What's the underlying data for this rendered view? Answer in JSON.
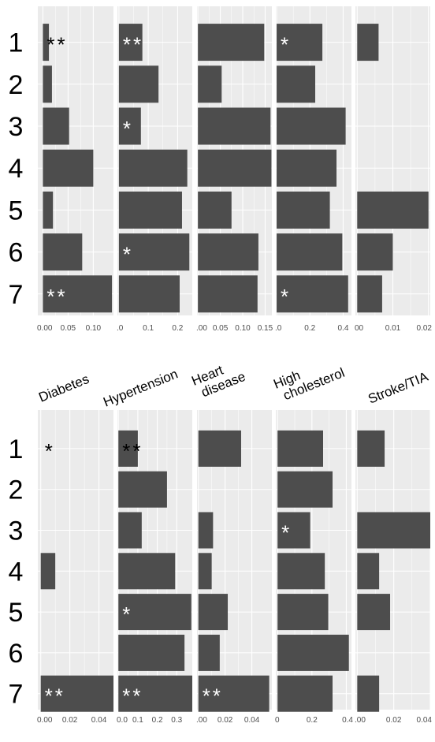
{
  "colors": {
    "panel_bg": "#ebebeb",
    "bar": "#4d4d4d",
    "grid": "#ffffff",
    "text": "#000000",
    "tick_text": "#4d4d4d"
  },
  "facet_labels": [
    "Diabetes",
    "Hypertension",
    "Heart disease",
    "High cholesterol",
    "Stroke/TIA"
  ],
  "chart_data": [
    {
      "type": "bar",
      "orientation": "horizontal",
      "categories": [
        "1",
        "2",
        "3",
        "4",
        "5",
        "6",
        "7"
      ],
      "facets": [
        {
          "name": "Diabetes",
          "xlim": [
            -0.01,
            0.14
          ],
          "ticks": [
            0,
            0.05,
            0.1
          ],
          "tick_labels": [
            "0.00",
            "0.05",
            "0.10"
          ],
          "values": [
            0.012,
            0.018,
            0.052,
            0.1,
            0.02,
            0.078,
            0.137
          ],
          "marks": [
            "**",
            "",
            "",
            "",
            "",
            "",
            "**"
          ]
        },
        {
          "name": "Hypertension",
          "xlim": [
            -0.005,
            0.25
          ],
          "ticks": [
            0,
            0.1,
            0.2
          ],
          "tick_labels": [
            ".0",
            "0.1",
            "0.2"
          ],
          "values": [
            0.08,
            0.135,
            0.075,
            0.233,
            0.215,
            0.24,
            0.207
          ],
          "marks": [
            "**",
            "",
            "*",
            "",
            "",
            "*",
            ""
          ]
        },
        {
          "name": "Heart disease",
          "xlim": [
            -0.002,
            0.165
          ],
          "ticks": [
            0,
            0.05,
            0.1,
            0.15
          ],
          "tick_labels": [
            ".00",
            "0.05",
            "0.10",
            "0.15"
          ],
          "values": [
            0.148,
            0.053,
            0.162,
            0.164,
            0.075,
            0.135,
            0.133
          ],
          "marks": [
            "",
            "",
            "",
            "",
            "",
            "",
            ""
          ]
        },
        {
          "name": "High cholesterol",
          "xlim": [
            -0.005,
            0.45
          ],
          "ticks": [
            0,
            0.2,
            0.4
          ],
          "tick_labels": [
            ".0",
            "0.2",
            "0.4"
          ],
          "values": [
            0.275,
            0.232,
            0.415,
            0.36,
            0.32,
            0.395,
            0.43
          ],
          "marks": [
            "*",
            "",
            "",
            "",
            "",
            "",
            "*"
          ]
        },
        {
          "name": "Stroke/TIA",
          "xlim": [
            -0.0005,
            0.0205
          ],
          "ticks": [
            0,
            0.01,
            0.02
          ],
          "tick_labels": [
            "00",
            "0.01",
            "0.02"
          ],
          "values": [
            0.006,
            0,
            0,
            0,
            0.02,
            0.01,
            0.007
          ],
          "marks": [
            "",
            "",
            "",
            "",
            "",
            "",
            ""
          ]
        }
      ]
    },
    {
      "type": "bar",
      "orientation": "horizontal",
      "categories": [
        "1",
        "2",
        "3",
        "4",
        "5",
        "6",
        "7"
      ],
      "facets": [
        {
          "name": "Diabetes",
          "xlim": [
            -0.002,
            0.05
          ],
          "ticks": [
            0,
            0.02,
            0.04
          ],
          "tick_labels": [
            "0.00",
            "0.02",
            "0.04"
          ],
          "values": [
            0,
            0,
            0,
            0.01,
            0,
            0,
            0.05
          ],
          "marks": [
            "*",
            "",
            "",
            "",
            "",
            "",
            "**"
          ]
        },
        {
          "name": "Hypertension",
          "xlim": [
            -0.005,
            0.38
          ],
          "ticks": [
            0,
            0.1,
            0.2,
            0.3
          ],
          "tick_labels": [
            "0.0",
            "0.1",
            "0.2",
            "0.3"
          ],
          "values": [
            0.1,
            0.25,
            0.12,
            0.292,
            0.375,
            0.34,
            0.385
          ],
          "marks": [
            "**",
            "",
            "",
            "",
            "*",
            "",
            "**"
          ]
        },
        {
          "name": "Heart disease",
          "xlim": [
            -0.001,
            0.055
          ],
          "ticks": [
            0,
            0.02,
            0.04
          ],
          "tick_labels": [
            ".00",
            "0.02",
            "0.04"
          ],
          "values": [
            0.032,
            0,
            0.011,
            0.01,
            0.022,
            0.016,
            0.053
          ],
          "marks": [
            "",
            "",
            "",
            "",
            "",
            "",
            "**"
          ]
        },
        {
          "name": "High cholesterol",
          "xlim": [
            -0.01,
            0.43
          ],
          "ticks": [
            0,
            0.2,
            0.4
          ],
          "tick_labels": [
            "0",
            "0.2",
            "0.4"
          ],
          "values": [
            0.265,
            0.32,
            0.19,
            0.275,
            0.295,
            0.415,
            0.32
          ],
          "marks": [
            "",
            "",
            "*",
            "",
            "",
            "",
            ""
          ]
        },
        {
          "name": "Stroke/TIA",
          "xlim": [
            -0.001,
            0.04
          ],
          "ticks": [
            0,
            0.02,
            0.04
          ],
          "tick_labels": [
            ".00",
            "0.02",
            "0.04"
          ],
          "values": [
            0.015,
            0,
            0.04,
            0.012,
            0.018,
            0,
            0.012
          ],
          "marks": [
            "",
            "",
            "",
            "",
            "",
            "",
            ""
          ]
        }
      ]
    }
  ]
}
